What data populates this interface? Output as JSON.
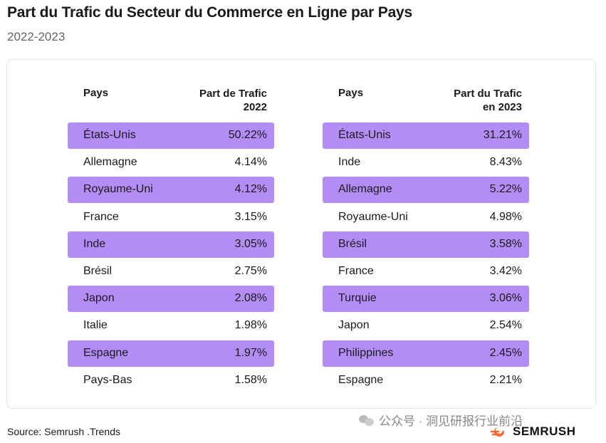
{
  "header": {
    "title": "Part du Trafic du Secteur du Commerce en Ligne par Pays",
    "subtitle": "2022-2023"
  },
  "table_2022": {
    "col_country": "Pays",
    "col_share_line1": "Part de Trafic",
    "col_share_line2": "2022",
    "rows": [
      {
        "country": "États-Unis",
        "share": "50.22%"
      },
      {
        "country": "Allemagne",
        "share": "4.14%"
      },
      {
        "country": "Royaume-Uni",
        "share": "4.12%"
      },
      {
        "country": "France",
        "share": "3.15%"
      },
      {
        "country": "Inde",
        "share": "3.05%"
      },
      {
        "country": "Brésil",
        "share": "2.75%"
      },
      {
        "country": "Japon",
        "share": "2.08%"
      },
      {
        "country": "Italie",
        "share": "1.98%"
      },
      {
        "country": "Espagne",
        "share": "1.97%"
      },
      {
        "country": "Pays-Bas",
        "share": "1.58%"
      }
    ]
  },
  "table_2023": {
    "col_country": "Pays",
    "col_share_line1": "Part du Trafic",
    "col_share_line2": "en 2023",
    "rows": [
      {
        "country": "États-Unis",
        "share": "31.21%"
      },
      {
        "country": "Inde",
        "share": "8.43%"
      },
      {
        "country": "Allemagne",
        "share": "5.22%"
      },
      {
        "country": "Royaume-Uni",
        "share": "4.98%"
      },
      {
        "country": "Brésil",
        "share": "3.58%"
      },
      {
        "country": "France",
        "share": "3.42%"
      },
      {
        "country": "Turquie",
        "share": "3.06%"
      },
      {
        "country": "Japon",
        "share": "2.54%"
      },
      {
        "country": "Philippines",
        "share": "2.45%"
      },
      {
        "country": "Espagne",
        "share": "2.21%"
      }
    ]
  },
  "footer": {
    "source": "Source: Semrush .Trends",
    "wechat_label": "公众号 · 洞见研报行业前沿",
    "brand": "SEMRUSH"
  },
  "colors": {
    "highlight": "#b48cf5",
    "brand_orange": "#ff642d"
  }
}
